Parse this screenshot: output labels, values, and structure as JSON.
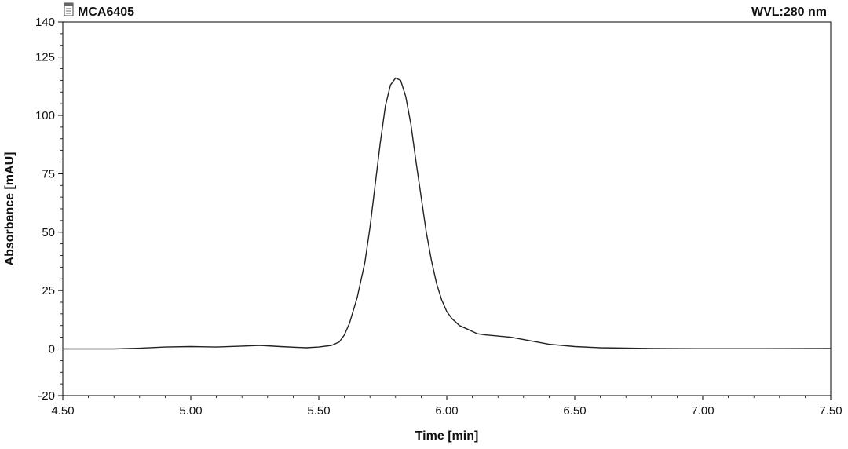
{
  "chart_data": {
    "type": "line",
    "title": "MCA6405",
    "wavelength": "WVL:280 nm",
    "xlabel": "Time [min]",
    "ylabel": "Absorbance [mAU]",
    "xlim": [
      4.5,
      7.5
    ],
    "ylim": [
      -20,
      140
    ],
    "xticks": [
      4.5,
      5.0,
      5.5,
      6.0,
      6.5,
      7.0,
      7.5
    ],
    "xtick_labels": [
      "4.50",
      "5.00",
      "5.50",
      "6.00",
      "6.50",
      "7.00",
      "7.50"
    ],
    "yticks": [
      140,
      125,
      100,
      75,
      50,
      25,
      0,
      -20
    ],
    "ytick_labels": [
      "140",
      "125",
      "100",
      "75",
      "50",
      "25",
      "0",
      "-20"
    ],
    "grid": false,
    "legend": "none",
    "series": [
      {
        "color": "#222222",
        "x": [
          4.5,
          4.7,
          4.8,
          4.9,
          5.0,
          5.1,
          5.2,
          5.27,
          5.35,
          5.45,
          5.5,
          5.55,
          5.58,
          5.6,
          5.62,
          5.65,
          5.68,
          5.7,
          5.72,
          5.74,
          5.76,
          5.78,
          5.8,
          5.82,
          5.84,
          5.86,
          5.88,
          5.9,
          5.92,
          5.94,
          5.96,
          5.98,
          6.0,
          6.02,
          6.05,
          6.08,
          6.1,
          6.12,
          6.15,
          6.2,
          6.25,
          6.3,
          6.35,
          6.4,
          6.5,
          6.6,
          6.8,
          7.0,
          7.2,
          7.5
        ],
        "y": [
          0,
          0,
          0.3,
          0.8,
          1,
          0.8,
          1.2,
          1.5,
          1,
          0.5,
          0.8,
          1.5,
          3,
          6,
          11,
          22,
          37,
          52,
          70,
          88,
          104,
          113,
          116,
          115,
          108,
          96,
          80,
          65,
          50,
          38,
          28,
          21,
          16,
          13,
          10,
          8.5,
          7.5,
          6.5,
          6,
          5.5,
          5,
          4,
          3,
          2,
          1,
          0.5,
          0.2,
          0.1,
          0.1,
          0.2
        ]
      }
    ]
  }
}
